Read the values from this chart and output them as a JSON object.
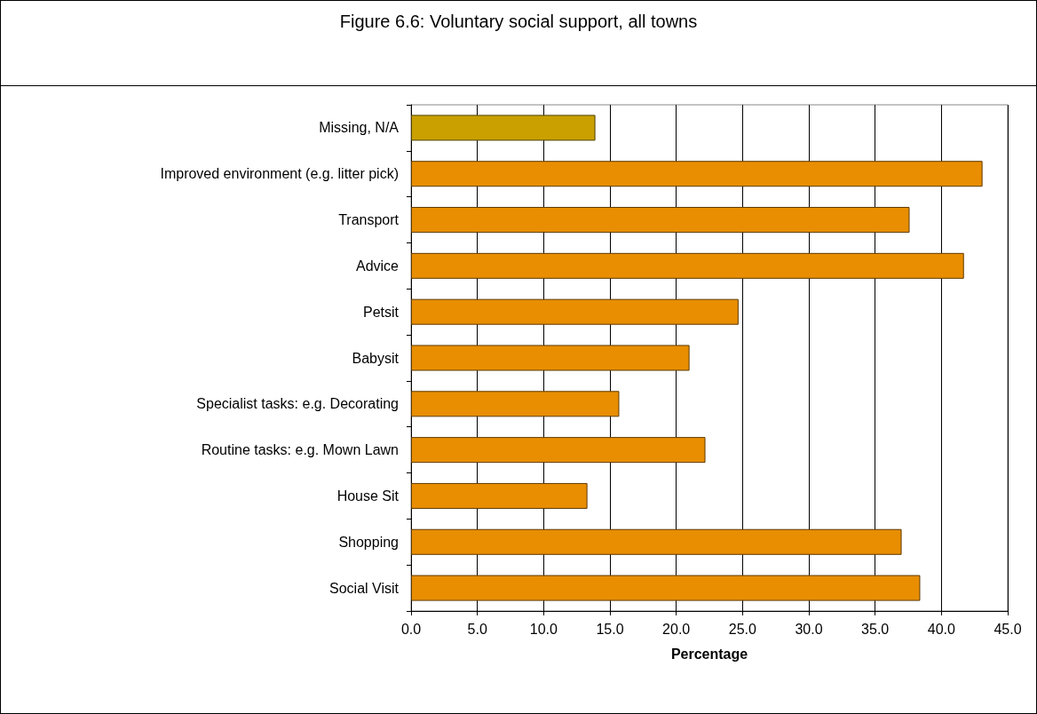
{
  "chart_data": {
    "type": "bar",
    "orientation": "horizontal",
    "title": "Figure 6.6: Voluntary social support, all towns",
    "xlabel": "Percentage",
    "categories": [
      "Missing, N/A",
      "Improved environment (e.g. litter pick)",
      "Transport",
      "Advice",
      "Petsit",
      "Babysit",
      "Specialist tasks: e.g. Decorating",
      "Routine tasks: e.g. Mown Lawn",
      "House Sit",
      "Shopping",
      "Social Visit"
    ],
    "values": [
      13.9,
      43.1,
      37.6,
      41.7,
      24.7,
      21.0,
      15.7,
      22.2,
      13.3,
      37.0,
      38.4
    ],
    "colors": [
      "#c9a000",
      "#e88e00",
      "#e88e00",
      "#e88e00",
      "#e88e00",
      "#e88e00",
      "#e88e00",
      "#e88e00",
      "#e88e00",
      "#e88e00",
      "#e88e00"
    ],
    "xlim": [
      0,
      45
    ],
    "xticks": [
      {
        "value": 0,
        "label": "0.0"
      },
      {
        "value": 5,
        "label": "5.0"
      },
      {
        "value": 10,
        "label": "10.0"
      },
      {
        "value": 15,
        "label": "15.0"
      },
      {
        "value": 20,
        "label": "20.0"
      },
      {
        "value": 25,
        "label": "25.0"
      },
      {
        "value": 30,
        "label": "30.0"
      },
      {
        "value": 35,
        "label": "35.0"
      },
      {
        "value": 40,
        "label": "40.0"
      },
      {
        "value": 45,
        "label": "45.0"
      }
    ],
    "grid": "x"
  }
}
